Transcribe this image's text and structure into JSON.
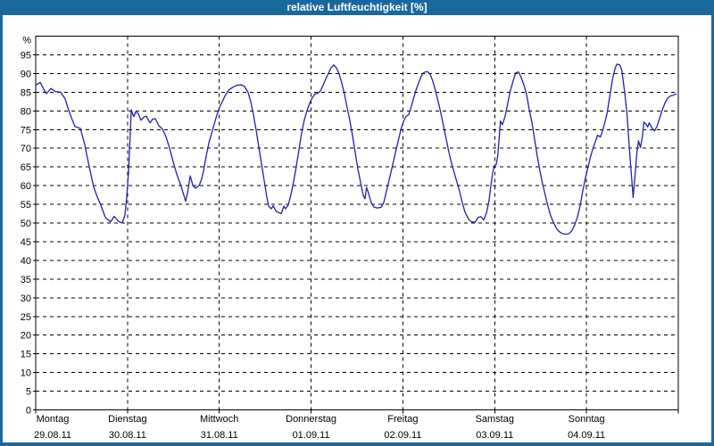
{
  "window": {
    "title": "relative Luftfeuchtigkeit [%]",
    "frame_color": "#19689c",
    "title_text_color": "#ffffff"
  },
  "chart_data": {
    "type": "line",
    "title": "relative Luftfeuchtigkeit [%]",
    "ylabel": "%",
    "xlabel": "",
    "ylim": [
      0,
      100
    ],
    "ytick_step": 5,
    "ytick_labels": [
      "0",
      "5",
      "10",
      "15",
      "20",
      "25",
      "30",
      "35",
      "40",
      "45",
      "50",
      "55",
      "60",
      "65",
      "70",
      "75",
      "80",
      "85",
      "90",
      "95"
    ],
    "percent_label": "%",
    "grid": "dashed",
    "legend": "none",
    "line_color": "#2121aa",
    "axis_color": "#000000",
    "x_axis": {
      "unit": "hours",
      "range_hours": [
        0,
        168
      ],
      "day_tick_every_hours": 24,
      "days": [
        {
          "name": "Montag",
          "date": "29.08.11"
        },
        {
          "name": "Dienstag",
          "date": "30.08.11"
        },
        {
          "name": "Mittwoch",
          "date": "31.08.11"
        },
        {
          "name": "Donnerstag",
          "date": "01.09.11"
        },
        {
          "name": "Freitag",
          "date": "02.09.11"
        },
        {
          "name": "Samstag",
          "date": "03.09.11"
        },
        {
          "name": "Sonntag",
          "date": "04.09.11"
        }
      ]
    },
    "series": [
      {
        "name": "relative Luftfeuchtigkeit",
        "unit": "%",
        "points": [
          [
            0,
            86.8
          ],
          [
            0.6,
            87.3
          ],
          [
            1.2,
            87.6
          ],
          [
            2.1,
            85.8
          ],
          [
            2.8,
            84.6
          ],
          [
            4.0,
            86.0
          ],
          [
            5.1,
            85.2
          ],
          [
            6.5,
            85.0
          ],
          [
            7.7,
            83.2
          ],
          [
            8.6,
            80.2
          ],
          [
            9.6,
            77.5
          ],
          [
            10.3,
            75.8
          ],
          [
            11.7,
            75.3
          ],
          [
            12.8,
            71.0
          ],
          [
            14.0,
            65.0
          ],
          [
            15.2,
            59.5
          ],
          [
            16.1,
            57.0
          ],
          [
            17.0,
            54.8
          ],
          [
            18.2,
            51.5
          ],
          [
            19.6,
            50.3
          ],
          [
            20.5,
            51.8
          ],
          [
            21.7,
            50.4
          ],
          [
            22.6,
            50.0
          ],
          [
            23.3,
            52.0
          ],
          [
            23.8,
            57.0
          ],
          [
            24.3,
            64.0
          ],
          [
            24.6,
            71.0
          ],
          [
            24.8,
            76.0
          ],
          [
            25.0,
            80.3
          ],
          [
            25.4,
            79.0
          ],
          [
            25.7,
            78.5
          ],
          [
            26.1,
            79.7
          ],
          [
            26.8,
            79.3
          ],
          [
            27.5,
            77.5
          ],
          [
            28.2,
            78.3
          ],
          [
            28.9,
            78.6
          ],
          [
            29.9,
            76.8
          ],
          [
            30.6,
            77.8
          ],
          [
            31.3,
            77.9
          ],
          [
            32.2,
            76.0
          ],
          [
            33.1,
            75.2
          ],
          [
            34.1,
            73.0
          ],
          [
            35.0,
            70.0
          ],
          [
            35.9,
            66.5
          ],
          [
            36.9,
            63.0
          ],
          [
            37.8,
            60.5
          ],
          [
            38.7,
            57.5
          ],
          [
            39.2,
            55.8
          ],
          [
            39.7,
            58.0
          ],
          [
            40.4,
            62.6
          ],
          [
            41.1,
            60.0
          ],
          [
            41.8,
            59.3
          ],
          [
            42.7,
            60.0
          ],
          [
            43.3,
            61.5
          ],
          [
            43.9,
            64.0
          ],
          [
            44.6,
            68.0
          ],
          [
            45.3,
            71.5
          ],
          [
            46.0,
            74.0
          ],
          [
            46.7,
            76.5
          ],
          [
            47.4,
            79.0
          ],
          [
            48.1,
            81.0
          ],
          [
            48.8,
            82.5
          ],
          [
            49.5,
            84.0
          ],
          [
            50.4,
            85.5
          ],
          [
            51.3,
            86.2
          ],
          [
            52.5,
            86.8
          ],
          [
            53.7,
            87.0
          ],
          [
            54.6,
            86.5
          ],
          [
            55.5,
            85.0
          ],
          [
            56.2,
            82.5
          ],
          [
            56.9,
            79.0
          ],
          [
            57.6,
            75.0
          ],
          [
            58.3,
            70.5
          ],
          [
            59.0,
            66.0
          ],
          [
            59.7,
            61.5
          ],
          [
            60.4,
            57.0
          ],
          [
            60.9,
            54.5
          ],
          [
            61.6,
            53.8
          ],
          [
            62.1,
            54.6
          ],
          [
            62.8,
            53.2
          ],
          [
            63.5,
            52.8
          ],
          [
            64.2,
            52.5
          ],
          [
            64.9,
            54.5
          ],
          [
            65.3,
            53.8
          ],
          [
            66.0,
            54.8
          ],
          [
            66.7,
            57.5
          ],
          [
            67.4,
            61.0
          ],
          [
            68.1,
            65.0
          ],
          [
            68.8,
            69.5
          ],
          [
            69.5,
            74.0
          ],
          [
            70.2,
            77.5
          ],
          [
            70.9,
            80.0
          ],
          [
            71.6,
            82.0
          ],
          [
            72.3,
            83.5
          ],
          [
            73.0,
            84.5
          ],
          [
            73.7,
            84.7
          ],
          [
            74.4,
            85.3
          ],
          [
            75.1,
            86.8
          ],
          [
            75.8,
            88.5
          ],
          [
            76.5,
            90.0
          ],
          [
            77.2,
            91.5
          ],
          [
            77.9,
            92.3
          ],
          [
            78.6,
            91.5
          ],
          [
            79.3,
            90.0
          ],
          [
            80.0,
            87.5
          ],
          [
            80.7,
            84.5
          ],
          [
            81.4,
            81.0
          ],
          [
            82.1,
            77.5
          ],
          [
            82.8,
            73.5
          ],
          [
            83.5,
            69.0
          ],
          [
            84.2,
            64.5
          ],
          [
            84.9,
            61.0
          ],
          [
            85.6,
            57.5
          ],
          [
            86.1,
            56.5
          ],
          [
            86.5,
            59.5
          ],
          [
            87.0,
            58.0
          ],
          [
            87.7,
            55.5
          ],
          [
            88.4,
            54.3
          ],
          [
            89.3,
            54.0
          ],
          [
            90.3,
            54.2
          ],
          [
            91.0,
            55.5
          ],
          [
            91.7,
            58.5
          ],
          [
            92.4,
            61.5
          ],
          [
            93.3,
            65.5
          ],
          [
            94.2,
            69.5
          ],
          [
            94.9,
            72.5
          ],
          [
            95.6,
            75.5
          ],
          [
            96.3,
            77.5
          ],
          [
            96.8,
            78.5
          ],
          [
            97.5,
            79.0
          ],
          [
            98.0,
            80.5
          ],
          [
            98.7,
            83.0
          ],
          [
            99.4,
            85.5
          ],
          [
            100.1,
            87.5
          ],
          [
            100.8,
            89.3
          ],
          [
            101.5,
            90.3
          ],
          [
            102.4,
            90.5
          ],
          [
            103.1,
            89.8
          ],
          [
            103.8,
            88.0
          ],
          [
            104.5,
            85.5
          ],
          [
            105.2,
            82.5
          ],
          [
            105.9,
            79.5
          ],
          [
            106.6,
            76.0
          ],
          [
            107.3,
            72.5
          ],
          [
            108.0,
            69.0
          ],
          [
            108.7,
            66.0
          ],
          [
            109.4,
            63.5
          ],
          [
            110.1,
            61.0
          ],
          [
            110.8,
            58.5
          ],
          [
            111.5,
            55.5
          ],
          [
            112.2,
            53.0
          ],
          [
            113.2,
            51.0
          ],
          [
            113.9,
            50.3
          ],
          [
            114.8,
            50.2
          ],
          [
            115.7,
            51.5
          ],
          [
            116.4,
            51.7
          ],
          [
            117.1,
            50.8
          ],
          [
            117.8,
            52.5
          ],
          [
            118.5,
            56.0
          ],
          [
            119.0,
            60.0
          ],
          [
            119.5,
            63.5
          ],
          [
            119.9,
            65.3
          ],
          [
            120.4,
            65.7
          ],
          [
            120.8,
            68.0
          ],
          [
            121.2,
            73.0
          ],
          [
            121.5,
            77.3
          ],
          [
            122.0,
            76.3
          ],
          [
            122.7,
            78.5
          ],
          [
            123.4,
            82.0
          ],
          [
            124.1,
            85.5
          ],
          [
            124.8,
            88.0
          ],
          [
            125.5,
            90.2
          ],
          [
            126.2,
            90.4
          ],
          [
            126.9,
            89.0
          ],
          [
            127.6,
            87.0
          ],
          [
            128.3,
            84.5
          ],
          [
            129.0,
            80.5
          ],
          [
            129.7,
            77.0
          ],
          [
            130.4,
            72.5
          ],
          [
            131.1,
            68.0
          ],
          [
            131.8,
            64.0
          ],
          [
            132.5,
            60.5
          ],
          [
            133.2,
            57.5
          ],
          [
            133.9,
            54.5
          ],
          [
            134.6,
            52.0
          ],
          [
            135.3,
            50.3
          ],
          [
            136.0,
            48.8
          ],
          [
            136.7,
            47.8
          ],
          [
            137.6,
            47.2
          ],
          [
            138.6,
            47.0
          ],
          [
            139.5,
            47.2
          ],
          [
            140.2,
            48.0
          ],
          [
            140.9,
            49.5
          ],
          [
            141.6,
            51.5
          ],
          [
            142.3,
            54.5
          ],
          [
            143.0,
            58.5
          ],
          [
            143.7,
            62.0
          ],
          [
            144.3,
            64.5
          ],
          [
            145.0,
            67.5
          ],
          [
            145.7,
            70.0
          ],
          [
            146.4,
            72.0
          ],
          [
            146.9,
            73.5
          ],
          [
            147.6,
            73.0
          ],
          [
            148.0,
            74.0
          ],
          [
            148.7,
            76.5
          ],
          [
            149.4,
            79.5
          ],
          [
            150.1,
            84.0
          ],
          [
            150.8,
            88.5
          ],
          [
            151.5,
            91.5
          ],
          [
            152.0,
            92.5
          ],
          [
            152.7,
            92.3
          ],
          [
            153.2,
            91.0
          ],
          [
            153.6,
            88.0
          ],
          [
            154.1,
            84.0
          ],
          [
            154.6,
            79.0
          ],
          [
            155.0,
            73.0
          ],
          [
            155.5,
            66.0
          ],
          [
            156.0,
            59.5
          ],
          [
            156.2,
            56.8
          ],
          [
            156.7,
            63.0
          ],
          [
            157.2,
            69.0
          ],
          [
            157.6,
            72.0
          ],
          [
            158.1,
            70.2
          ],
          [
            158.6,
            73.0
          ],
          [
            159.0,
            77.0
          ],
          [
            159.5,
            76.5
          ],
          [
            160.0,
            75.7
          ],
          [
            160.4,
            76.8
          ],
          [
            161.1,
            75.5
          ],
          [
            161.8,
            74.6
          ],
          [
            162.5,
            76.0
          ],
          [
            163.2,
            78.3
          ],
          [
            163.9,
            80.5
          ],
          [
            164.6,
            82.3
          ],
          [
            165.3,
            83.5
          ],
          [
            166.0,
            84.0
          ],
          [
            166.7,
            84.2
          ],
          [
            167.4,
            84.5
          ]
        ]
      }
    ]
  }
}
